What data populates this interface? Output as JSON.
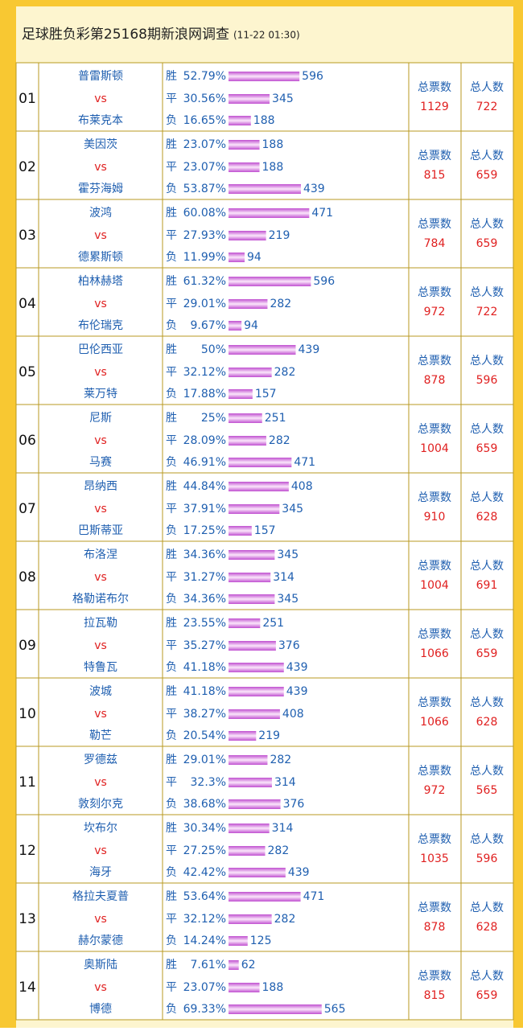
{
  "header": {
    "title": "足球胜负彩第25168期新浪网调查",
    "time": "(11-22 01:30)"
  },
  "rows": [
    {
      "no": "01",
      "home": "普雷斯顿",
      "vs": "vs",
      "away": "布莱克本",
      "options": [
        {
          "label": "胜",
          "pct": 52.79,
          "pct_label": "52.79%",
          "count": 596
        },
        {
          "label": "平",
          "pct": 30.56,
          "pct_label": "30.56%",
          "count": 345
        },
        {
          "label": "负",
          "pct": 16.65,
          "pct_label": "16.65%",
          "count": 188
        }
      ],
      "votes_label": "总票数",
      "votes": 1129,
      "people_label": "总人数",
      "people": 722
    },
    {
      "no": "02",
      "home": "美因茨",
      "vs": "vs",
      "away": "霍芬海姆",
      "options": [
        {
          "label": "胜",
          "pct": 23.07,
          "pct_label": "23.07%",
          "count": 188
        },
        {
          "label": "平",
          "pct": 23.07,
          "pct_label": "23.07%",
          "count": 188
        },
        {
          "label": "负",
          "pct": 53.87,
          "pct_label": "53.87%",
          "count": 439
        }
      ],
      "votes_label": "总票数",
      "votes": 815,
      "people_label": "总人数",
      "people": 659
    },
    {
      "no": "03",
      "home": "波鸿",
      "vs": "vs",
      "away": "德累斯顿",
      "options": [
        {
          "label": "胜",
          "pct": 60.08,
          "pct_label": "60.08%",
          "count": 471
        },
        {
          "label": "平",
          "pct": 27.93,
          "pct_label": "27.93%",
          "count": 219
        },
        {
          "label": "负",
          "pct": 11.99,
          "pct_label": "11.99%",
          "count": 94
        }
      ],
      "votes_label": "总票数",
      "votes": 784,
      "people_label": "总人数",
      "people": 659
    },
    {
      "no": "04",
      "home": "柏林赫塔",
      "vs": "vs",
      "away": "布伦瑞克",
      "options": [
        {
          "label": "胜",
          "pct": 61.32,
          "pct_label": "61.32%",
          "count": 596
        },
        {
          "label": "平",
          "pct": 29.01,
          "pct_label": "29.01%",
          "count": 282
        },
        {
          "label": "负",
          "pct": 9.67,
          "pct_label": "9.67%",
          "count": 94
        }
      ],
      "votes_label": "总票数",
      "votes": 972,
      "people_label": "总人数",
      "people": 722
    },
    {
      "no": "05",
      "home": "巴伦西亚",
      "vs": "vs",
      "away": "莱万特",
      "options": [
        {
          "label": "胜",
          "pct": 50,
          "pct_label": "50%",
          "count": 439
        },
        {
          "label": "平",
          "pct": 32.12,
          "pct_label": "32.12%",
          "count": 282
        },
        {
          "label": "负",
          "pct": 17.88,
          "pct_label": "17.88%",
          "count": 157
        }
      ],
      "votes_label": "总票数",
      "votes": 878,
      "people_label": "总人数",
      "people": 596
    },
    {
      "no": "06",
      "home": "尼斯",
      "vs": "vs",
      "away": "马赛",
      "options": [
        {
          "label": "胜",
          "pct": 25,
          "pct_label": "25%",
          "count": 251
        },
        {
          "label": "平",
          "pct": 28.09,
          "pct_label": "28.09%",
          "count": 282
        },
        {
          "label": "负",
          "pct": 46.91,
          "pct_label": "46.91%",
          "count": 471
        }
      ],
      "votes_label": "总票数",
      "votes": 1004,
      "people_label": "总人数",
      "people": 659
    },
    {
      "no": "07",
      "home": "昂纳西",
      "vs": "vs",
      "away": "巴斯蒂亚",
      "options": [
        {
          "label": "胜",
          "pct": 44.84,
          "pct_label": "44.84%",
          "count": 408
        },
        {
          "label": "平",
          "pct": 37.91,
          "pct_label": "37.91%",
          "count": 345
        },
        {
          "label": "负",
          "pct": 17.25,
          "pct_label": "17.25%",
          "count": 157
        }
      ],
      "votes_label": "总票数",
      "votes": 910,
      "people_label": "总人数",
      "people": 628
    },
    {
      "no": "08",
      "home": "布洛涅",
      "vs": "vs",
      "away": "格勒诺布尔",
      "options": [
        {
          "label": "胜",
          "pct": 34.36,
          "pct_label": "34.36%",
          "count": 345
        },
        {
          "label": "平",
          "pct": 31.27,
          "pct_label": "31.27%",
          "count": 314
        },
        {
          "label": "负",
          "pct": 34.36,
          "pct_label": "34.36%",
          "count": 345
        }
      ],
      "votes_label": "总票数",
      "votes": 1004,
      "people_label": "总人数",
      "people": 691
    },
    {
      "no": "09",
      "home": "拉瓦勒",
      "vs": "vs",
      "away": "特鲁瓦",
      "options": [
        {
          "label": "胜",
          "pct": 23.55,
          "pct_label": "23.55%",
          "count": 251
        },
        {
          "label": "平",
          "pct": 35.27,
          "pct_label": "35.27%",
          "count": 376
        },
        {
          "label": "负",
          "pct": 41.18,
          "pct_label": "41.18%",
          "count": 439
        }
      ],
      "votes_label": "总票数",
      "votes": 1066,
      "people_label": "总人数",
      "people": 659
    },
    {
      "no": "10",
      "home": "波城",
      "vs": "vs",
      "away": "勒芒",
      "options": [
        {
          "label": "胜",
          "pct": 41.18,
          "pct_label": "41.18%",
          "count": 439
        },
        {
          "label": "平",
          "pct": 38.27,
          "pct_label": "38.27%",
          "count": 408
        },
        {
          "label": "负",
          "pct": 20.54,
          "pct_label": "20.54%",
          "count": 219
        }
      ],
      "votes_label": "总票数",
      "votes": 1066,
      "people_label": "总人数",
      "people": 628
    },
    {
      "no": "11",
      "home": "罗德兹",
      "vs": "vs",
      "away": "敦刻尔克",
      "options": [
        {
          "label": "胜",
          "pct": 29.01,
          "pct_label": "29.01%",
          "count": 282
        },
        {
          "label": "平",
          "pct": 32.3,
          "pct_label": "32.3%",
          "count": 314
        },
        {
          "label": "负",
          "pct": 38.68,
          "pct_label": "38.68%",
          "count": 376
        }
      ],
      "votes_label": "总票数",
      "votes": 972,
      "people_label": "总人数",
      "people": 565
    },
    {
      "no": "12",
      "home": "坎布尔",
      "vs": "vs",
      "away": "海牙",
      "options": [
        {
          "label": "胜",
          "pct": 30.34,
          "pct_label": "30.34%",
          "count": 314
        },
        {
          "label": "平",
          "pct": 27.25,
          "pct_label": "27.25%",
          "count": 282
        },
        {
          "label": "负",
          "pct": 42.42,
          "pct_label": "42.42%",
          "count": 439
        }
      ],
      "votes_label": "总票数",
      "votes": 1035,
      "people_label": "总人数",
      "people": 596
    },
    {
      "no": "13",
      "home": "格拉夫夏普",
      "vs": "vs",
      "away": "赫尔蒙德",
      "options": [
        {
          "label": "胜",
          "pct": 53.64,
          "pct_label": "53.64%",
          "count": 471
        },
        {
          "label": "平",
          "pct": 32.12,
          "pct_label": "32.12%",
          "count": 282
        },
        {
          "label": "负",
          "pct": 14.24,
          "pct_label": "14.24%",
          "count": 125
        }
      ],
      "votes_label": "总票数",
      "votes": 878,
      "people_label": "总人数",
      "people": 628
    },
    {
      "no": "14",
      "home": "奥斯陆",
      "vs": "vs",
      "away": "博德",
      "options": [
        {
          "label": "胜",
          "pct": 7.61,
          "pct_label": "7.61%",
          "count": 62
        },
        {
          "label": "平",
          "pct": 23.07,
          "pct_label": "23.07%",
          "count": 188
        },
        {
          "label": "负",
          "pct": 69.33,
          "pct_label": "69.33%",
          "count": 565
        }
      ],
      "votes_label": "总票数",
      "votes": 815,
      "people_label": "总人数",
      "people": 659
    }
  ]
}
